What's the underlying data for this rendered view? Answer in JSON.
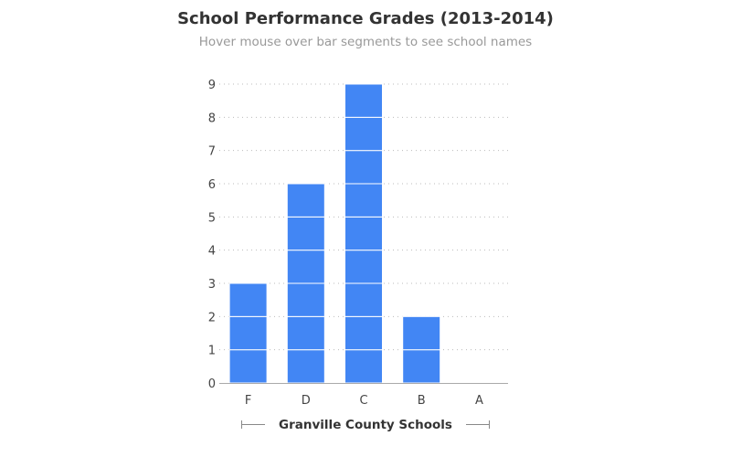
{
  "chart_data": {
    "type": "bar",
    "title": "School Performance Grades (2013-2014)",
    "subtitle": "Hover mouse over bar segments to see school names",
    "xlabel": "Granville County Schools",
    "ylabel": "",
    "categories": [
      "F",
      "D",
      "C",
      "B",
      "A"
    ],
    "values": [
      3,
      6,
      9,
      2,
      0
    ],
    "ylim": [
      0,
      9
    ],
    "yticks": [
      "0",
      "1",
      "2",
      "3",
      "4",
      "5",
      "6",
      "7",
      "8",
      "9"
    ],
    "grid": true,
    "stacked_segments": true,
    "bar_color": "#4286f4",
    "segment_line_color": "#ffffff"
  }
}
